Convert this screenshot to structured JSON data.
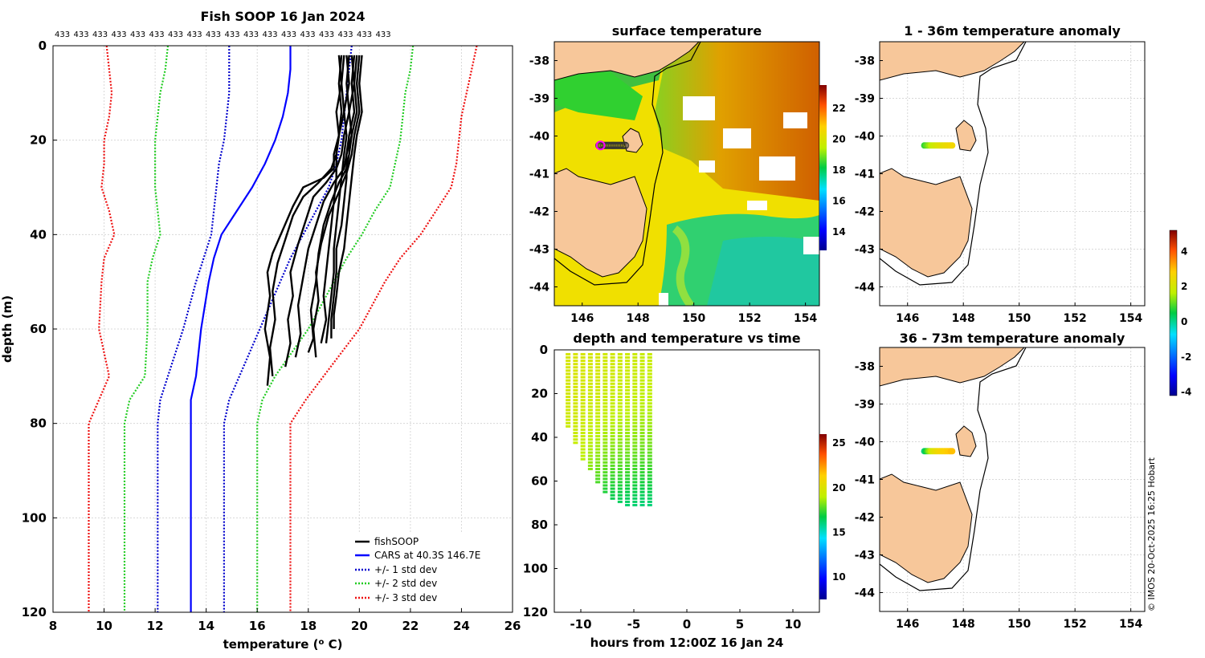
{
  "copyright": "© IMOS 20-Oct-2025 16:25 Hobart",
  "profile_panel": {
    "title": "Fish SOOP 16 Jan 2024",
    "top_labels": [
      "433",
      "433",
      "433",
      "433",
      "433",
      "433",
      "433",
      "433",
      "433",
      "433",
      "433",
      "433",
      "433",
      "433",
      "433",
      "433",
      "433",
      "433"
    ],
    "legend": [
      "fishSOOP",
      "CARS at 40.3S 146.7E",
      "+/- 1 std dev",
      "+/- 2 std dev",
      "+/- 3 std dev"
    ]
  },
  "sst_panel": {
    "title": "surface temperature"
  },
  "anom1_panel": {
    "title": "1 - 36m temperature anomaly"
  },
  "anom2_panel": {
    "title": "36 - 73m temperature anomaly"
  },
  "time_panel": {
    "title": "depth and temperature vs time"
  },
  "colors": {
    "fish": "#000000",
    "cars": "#0000ff",
    "std1": "#0000cc",
    "std2": "#22cc22",
    "std3": "#ee1111",
    "land": "#f7c79a",
    "grid": "#d8d8d8"
  },
  "chart_data": [
    {
      "name": "profile",
      "type": "line",
      "title": "Fish SOOP 16 Jan 2024",
      "xlabel": "temperature (o C)",
      "ylabel": "depth (m)",
      "xlim": [
        8,
        26
      ],
      "ylim": [
        120,
        0
      ],
      "xticks": [
        8,
        10,
        12,
        14,
        16,
        18,
        20,
        22,
        24,
        26
      ],
      "yticks": [
        0,
        20,
        40,
        60,
        80,
        100,
        120
      ],
      "grid": true,
      "legend_position": "bottom-right",
      "series": [
        {
          "name": "CARS at 40.3S 146.7E",
          "style": "cars",
          "x": [
            17.3,
            17.3,
            17.2,
            17.0,
            16.7,
            16.3,
            15.8,
            15.2,
            14.6,
            14.3,
            14.1,
            13.8,
            13.6,
            13.4,
            13.4,
            13.4
          ],
          "y": [
            0,
            5,
            10,
            15,
            20,
            25,
            30,
            35,
            40,
            45,
            50,
            60,
            70,
            75,
            80,
            120
          ]
        },
        {
          "name": "+1 std dev",
          "style": "std1",
          "x": [
            19.7,
            19.6,
            19.5,
            19.4,
            19.3,
            19.1,
            18.8,
            18.3,
            17.8,
            17.3,
            16.9,
            16.1,
            15.3,
            14.9,
            14.7,
            14.7
          ],
          "y": [
            0,
            5,
            10,
            15,
            20,
            25,
            30,
            35,
            40,
            45,
            50,
            60,
            70,
            75,
            80,
            120
          ]
        },
        {
          "name": "-1 std dev",
          "style": "std1",
          "x": [
            14.9,
            14.9,
            14.9,
            14.8,
            14.7,
            14.5,
            14.4,
            14.3,
            14.2,
            13.9,
            13.6,
            13.1,
            12.5,
            12.2,
            12.1,
            12.1
          ],
          "y": [
            0,
            5,
            10,
            15,
            20,
            25,
            30,
            35,
            40,
            45,
            50,
            60,
            70,
            75,
            80,
            120
          ]
        },
        {
          "name": "+2 std dev",
          "style": "std2",
          "x": [
            22.1,
            22.0,
            21.8,
            21.7,
            21.6,
            21.4,
            21.2,
            20.6,
            20.1,
            19.5,
            19.0,
            18.0,
            16.7,
            16.2,
            16.0,
            16.0
          ],
          "y": [
            0,
            5,
            10,
            15,
            20,
            25,
            30,
            35,
            40,
            45,
            50,
            60,
            70,
            75,
            80,
            120
          ]
        },
        {
          "name": "-2 std dev",
          "style": "std2",
          "x": [
            12.5,
            12.4,
            12.2,
            12.1,
            12.0,
            12.0,
            12.0,
            12.1,
            12.2,
            11.9,
            11.7,
            11.7,
            11.6,
            11.0,
            10.8,
            10.8
          ],
          "y": [
            0,
            5,
            10,
            15,
            20,
            25,
            30,
            35,
            40,
            45,
            50,
            60,
            70,
            75,
            80,
            120
          ]
        },
        {
          "name": "+3 std dev",
          "style": "std3",
          "x": [
            24.6,
            24.4,
            24.2,
            24.0,
            23.9,
            23.8,
            23.6,
            23.0,
            22.4,
            21.6,
            21.0,
            20.0,
            18.6,
            17.9,
            17.3,
            17.3
          ],
          "y": [
            0,
            5,
            10,
            15,
            20,
            25,
            30,
            35,
            40,
            45,
            50,
            60,
            70,
            75,
            80,
            120
          ]
        },
        {
          "name": "-3 std dev",
          "style": "std3",
          "x": [
            10.1,
            10.2,
            10.3,
            10.2,
            10.0,
            10.0,
            9.9,
            10.2,
            10.4,
            10.0,
            9.9,
            9.8,
            10.2,
            9.8,
            9.4,
            9.4
          ],
          "y": [
            0,
            5,
            10,
            15,
            20,
            25,
            30,
            35,
            40,
            45,
            50,
            60,
            70,
            75,
            80,
            120
          ]
        },
        {
          "name": "fishSOOP",
          "style": "fish",
          "x": [
            19.2,
            19.3,
            19.1,
            19.2,
            19.0,
            19.0,
            18.6,
            17.8,
            17.4,
            17.0,
            16.6,
            16.4,
            16.5,
            16.3,
            16.5,
            16.4
          ],
          "y": [
            2,
            8,
            14,
            19,
            23,
            26,
            28,
            30,
            34,
            39,
            44,
            48,
            53,
            60,
            66,
            72
          ]
        },
        {
          "name": "fishSOOP",
          "style": "fish",
          "x": [
            19.4,
            19.3,
            19.4,
            19.2,
            19.1,
            18.9,
            18.4,
            17.8,
            17.4,
            17.1,
            16.8,
            16.6,
            16.7,
            16.5,
            16.6
          ],
          "y": [
            2,
            8,
            14,
            19,
            23,
            26,
            29,
            32,
            36,
            41,
            46,
            52,
            58,
            64,
            70
          ]
        },
        {
          "name": "fishSOOP",
          "style": "fish",
          "x": [
            19.6,
            19.5,
            19.6,
            19.4,
            19.3,
            19.1,
            18.7,
            18.2,
            17.9,
            17.6,
            17.3,
            17.4,
            17.2,
            17.3,
            17.1
          ],
          "y": [
            2,
            8,
            14,
            19,
            23,
            26,
            29,
            32,
            37,
            42,
            48,
            53,
            58,
            63,
            68
          ]
        },
        {
          "name": "fishSOOP",
          "style": "fish",
          "x": [
            19.7,
            19.8,
            19.6,
            19.7,
            19.5,
            19.4,
            19.0,
            18.6,
            18.3,
            18.0,
            17.8,
            17.6,
            17.7,
            17.5
          ],
          "y": [
            2,
            8,
            14,
            19,
            23,
            26,
            29,
            33,
            38,
            43,
            49,
            55,
            61,
            66
          ]
        },
        {
          "name": "fishSOOP",
          "style": "fish",
          "x": [
            19.9,
            19.8,
            19.9,
            19.7,
            19.6,
            19.5,
            19.2,
            18.9,
            18.6,
            18.4,
            18.3,
            18.1,
            18.2,
            18.0
          ],
          "y": [
            2,
            8,
            14,
            19,
            23,
            26,
            29,
            33,
            38,
            44,
            50,
            56,
            62,
            65
          ]
        },
        {
          "name": "fishSOOP",
          "style": "fish",
          "x": [
            20.0,
            19.9,
            20.0,
            19.8,
            19.7,
            19.5,
            19.2,
            18.8,
            18.5,
            18.3,
            18.4,
            18.2,
            18.3
          ],
          "y": [
            2,
            8,
            14,
            19,
            23,
            27,
            31,
            36,
            42,
            48,
            54,
            60,
            66
          ]
        },
        {
          "name": "fishSOOP",
          "style": "fish",
          "x": [
            19.3,
            19.2,
            19.3,
            19.2,
            19.1,
            19.1,
            19.0,
            18.9,
            18.8,
            18.7,
            18.6,
            18.7,
            18.5
          ],
          "y": [
            2,
            8,
            14,
            19,
            23,
            28,
            33,
            38,
            43,
            48,
            53,
            58,
            63
          ]
        },
        {
          "name": "fishSOOP",
          "style": "fish",
          "x": [
            19.5,
            19.6,
            19.4,
            19.5,
            19.4,
            19.3,
            19.2,
            19.1,
            19.0,
            19.0,
            18.9,
            18.8,
            18.7
          ],
          "y": [
            2,
            8,
            14,
            19,
            23,
            28,
            33,
            38,
            43,
            48,
            53,
            58,
            63
          ]
        },
        {
          "name": "fishSOOP",
          "style": "fish",
          "x": [
            19.8,
            19.7,
            19.8,
            19.6,
            19.5,
            19.5,
            19.4,
            19.3,
            19.1,
            19.1,
            19.0,
            18.9,
            18.9
          ],
          "y": [
            2,
            8,
            14,
            19,
            23,
            28,
            33,
            38,
            43,
            48,
            53,
            58,
            62
          ]
        },
        {
          "name": "fishSOOP",
          "style": "fish",
          "x": [
            20.1,
            20.0,
            20.1,
            19.9,
            19.8,
            19.7,
            19.6,
            19.5,
            19.4,
            19.2,
            19.1,
            19.0,
            19.0
          ],
          "y": [
            2,
            8,
            14,
            19,
            23,
            28,
            33,
            38,
            43,
            48,
            53,
            57,
            60
          ]
        }
      ]
    },
    {
      "name": "surface_temperature_map",
      "type": "heatmap",
      "title": "surface temperature",
      "xlim": [
        145,
        154.5
      ],
      "ylim": [
        -44.5,
        -37.5
      ],
      "xticks": [
        146,
        148,
        150,
        152,
        154
      ],
      "yticks": [
        -38,
        -39,
        -40,
        -41,
        -42,
        -43,
        -44
      ],
      "colorbar": {
        "range": [
          12.8,
          23.5
        ],
        "ticks": [
          14,
          16,
          18,
          20,
          22
        ]
      },
      "track_markers": {
        "count": 18,
        "lat": -40.25,
        "lon_start": 146.6,
        "lon_end": 147.55
      }
    },
    {
      "name": "anomaly_1_36m_map",
      "type": "scatter",
      "title": "1 - 36m temperature anomaly",
      "xlim": [
        145,
        154.5
      ],
      "ylim": [
        -44.5,
        -37.5
      ],
      "xticks": [
        146,
        148,
        150,
        152,
        154
      ],
      "yticks": [
        -38,
        -39,
        -40,
        -41,
        -42,
        -43,
        -44
      ],
      "points": {
        "lat": -40.25,
        "lon": [
          146.6,
          146.66,
          146.72,
          146.78,
          146.84,
          146.9,
          146.96,
          147.02,
          147.08,
          147.14,
          147.2,
          147.26,
          147.32,
          147.38,
          147.44,
          147.5,
          147.55,
          147.6
        ],
        "anomaly": [
          0.8,
          1.0,
          1.2,
          1.4,
          1.6,
          1.8,
          1.9,
          2.0,
          2.1,
          2.2,
          2.3,
          2.3,
          2.4,
          2.4,
          2.5,
          2.5,
          2.6,
          2.6
        ]
      }
    },
    {
      "name": "anomaly_36_73m_map",
      "type": "scatter",
      "title": "36 - 73m temperature anomaly",
      "xlim": [
        145,
        154.5
      ],
      "ylim": [
        -44.5,
        -37.5
      ],
      "xticks": [
        146,
        148,
        150,
        152,
        154
      ],
      "yticks": [
        -38,
        -39,
        -40,
        -41,
        -42,
        -43,
        -44
      ],
      "points": {
        "lat": -40.25,
        "lon": [
          146.6,
          146.66,
          146.72,
          146.78,
          146.84,
          146.9,
          146.96,
          147.02,
          147.08,
          147.14,
          147.2,
          147.26,
          147.32,
          147.38,
          147.44,
          147.5,
          147.55,
          147.6
        ],
        "anomaly": [
          0.2,
          0.6,
          1.0,
          1.4,
          1.8,
          2.1,
          2.3,
          2.4,
          2.5,
          2.6,
          2.7,
          2.7,
          2.8,
          2.8,
          2.9,
          2.9,
          3.0,
          3.0
        ]
      }
    },
    {
      "name": "anomaly_colorbar",
      "type": "heatmap",
      "range": [
        -4.2,
        5.2
      ],
      "ticks": [
        -4,
        -2,
        0,
        2,
        4
      ]
    },
    {
      "name": "depth_time",
      "type": "scatter",
      "title": "depth and temperature vs time",
      "xlabel": "hours from 12:00Z 16 Jan 24",
      "xlim": [
        -12.5,
        12.5
      ],
      "ylim": [
        120,
        0
      ],
      "xticks": [
        -10,
        -5,
        0,
        5,
        10
      ],
      "yticks": [
        0,
        20,
        40,
        60,
        80,
        100,
        120
      ],
      "colorbar": {
        "range": [
          7.5,
          26.0
        ],
        "ticks": [
          10,
          15,
          20,
          25
        ]
      },
      "casts": [
        {
          "t": -11.2,
          "max_depth": 35,
          "surface_temp": 19.8,
          "bottom_temp": 19.4
        },
        {
          "t": -10.5,
          "max_depth": 43,
          "surface_temp": 19.9,
          "bottom_temp": 19.2
        },
        {
          "t": -9.8,
          "max_depth": 50,
          "surface_temp": 19.8,
          "bottom_temp": 18.9
        },
        {
          "t": -9.1,
          "max_depth": 55,
          "surface_temp": 19.7,
          "bottom_temp": 18.3
        },
        {
          "t": -8.4,
          "max_depth": 61,
          "surface_temp": 19.8,
          "bottom_temp": 17.6
        },
        {
          "t": -7.7,
          "max_depth": 66,
          "surface_temp": 19.6,
          "bottom_temp": 17.0
        },
        {
          "t": -7.0,
          "max_depth": 68,
          "surface_temp": 19.6,
          "bottom_temp": 16.6
        },
        {
          "t": -6.3,
          "max_depth": 70,
          "surface_temp": 19.5,
          "bottom_temp": 16.4
        },
        {
          "t": -5.6,
          "max_depth": 71,
          "surface_temp": 19.5,
          "bottom_temp": 16.2
        },
        {
          "t": -4.9,
          "max_depth": 72,
          "surface_temp": 19.4,
          "bottom_temp": 16.1
        },
        {
          "t": -4.2,
          "max_depth": 72,
          "surface_temp": 19.3,
          "bottom_temp": 16.0
        },
        {
          "t": -3.5,
          "max_depth": 72,
          "surface_temp": 19.3,
          "bottom_temp": 16.0
        }
      ]
    }
  ]
}
